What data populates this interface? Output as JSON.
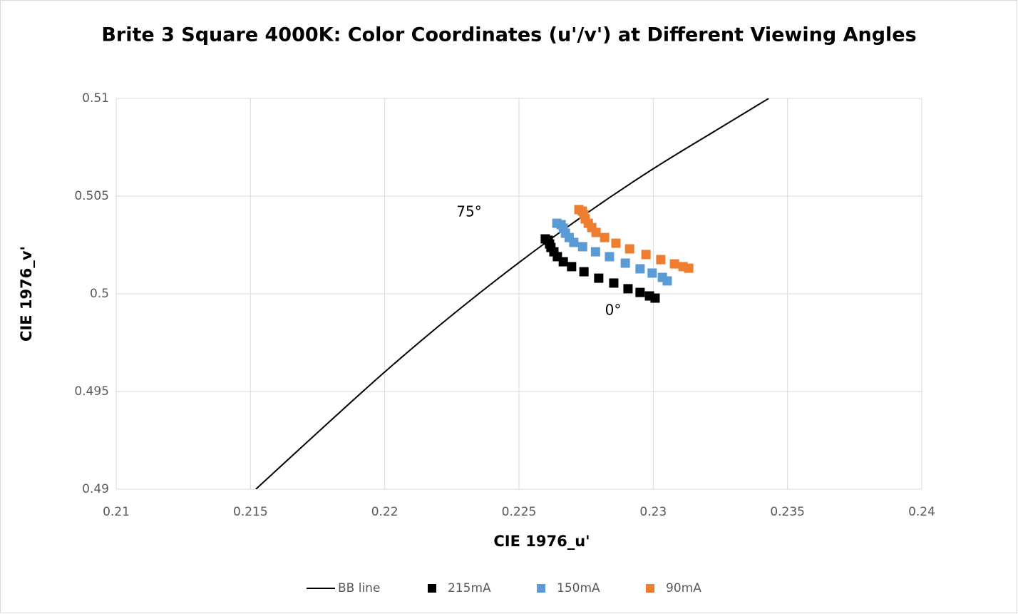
{
  "chart_data": {
    "type": "scatter",
    "title": "Brite 3 Square 4000K: Color Coordinates (u'/v') at Different Viewing Angles",
    "x_label": "CIE 1976_u'",
    "y_label": "CIE 1976_v'",
    "xlim": [
      0.21,
      0.24
    ],
    "xticks": [
      0.21,
      0.215,
      0.22,
      0.225,
      0.23,
      0.235,
      0.24
    ],
    "ylim": [
      0.49,
      0.51
    ],
    "yticks": [
      0.49,
      0.495,
      0.5,
      0.505,
      0.51
    ],
    "grid": true,
    "legend": "bottom",
    "annotations": [
      "75°",
      "0°"
    ],
    "series": [
      {
        "name": "BB line",
        "kind": "line",
        "color": "#000000",
        "x": [
          0.2152,
          0.2175,
          0.22,
          0.2225,
          0.225,
          0.2275,
          0.23,
          0.2325,
          0.2343
        ],
        "values": [
          0.49,
          0.4929,
          0.496,
          0.4989,
          0.5016,
          0.5041,
          0.5064,
          0.5085,
          0.51
        ]
      },
      {
        "name": "215mA",
        "kind": "marker",
        "color": "#000000",
        "x": [
          0.22598,
          0.22609,
          0.22614,
          0.22619,
          0.2263,
          0.22643,
          0.22665,
          0.22696,
          0.22742,
          0.22797,
          0.22853,
          0.22906,
          0.22951,
          0.22986,
          0.23007
        ],
        "values": [
          0.50281,
          0.50274,
          0.50255,
          0.50237,
          0.50215,
          0.5019,
          0.50164,
          0.50139,
          0.50113,
          0.5008,
          0.50055,
          0.50026,
          0.50007,
          0.49989,
          0.49978
        ]
      },
      {
        "name": "150mA",
        "kind": "marker",
        "color": "#5b9bd5",
        "x": [
          0.22641,
          0.22657,
          0.22665,
          0.22673,
          0.22687,
          0.22704,
          0.22737,
          0.22785,
          0.22837,
          0.22896,
          0.22951,
          0.22996,
          0.23034,
          0.23052
        ],
        "values": [
          0.50361,
          0.50354,
          0.50336,
          0.5031,
          0.50288,
          0.50263,
          0.50241,
          0.50215,
          0.5019,
          0.50157,
          0.50128,
          0.50106,
          0.50084,
          0.50066
        ]
      },
      {
        "name": "90mA",
        "kind": "marker",
        "color": "#ed7d31",
        "x": [
          0.22723,
          0.22736,
          0.22742,
          0.22747,
          0.22758,
          0.22771,
          0.22787,
          0.22819,
          0.22861,
          0.22912,
          0.22973,
          0.23028,
          0.23079,
          0.23111,
          0.23132
        ],
        "values": [
          0.50431,
          0.50423,
          0.50405,
          0.50383,
          0.50361,
          0.50339,
          0.50314,
          0.50288,
          0.50259,
          0.5023,
          0.50201,
          0.50175,
          0.50153,
          0.50139,
          0.50131
        ]
      }
    ]
  }
}
